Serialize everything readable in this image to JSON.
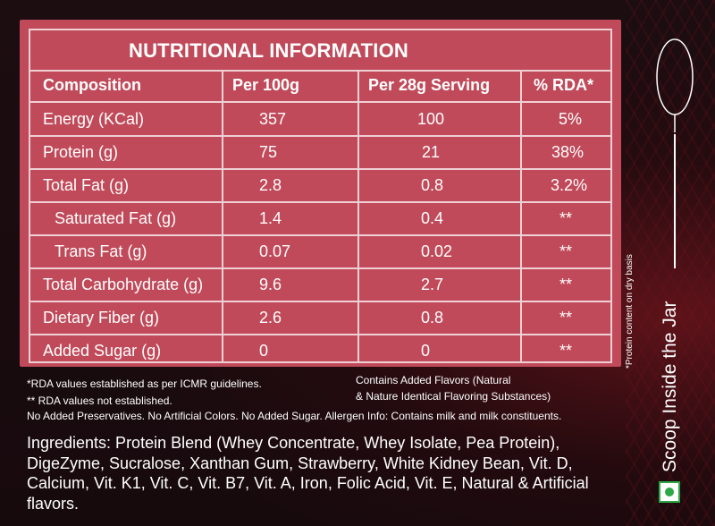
{
  "table": {
    "title": "NUTRITIONAL INFORMATION",
    "headers": [
      "Composition",
      "Per 100g",
      "Per 28g Serving",
      "% RDA*"
    ],
    "rows": [
      {
        "name": "Energy (KCal)",
        "per100": "357",
        "serving": "100",
        "rda": "5%"
      },
      {
        "name": "Protein (g)",
        "per100": "75",
        "serving": "21",
        "rda": "38%"
      },
      {
        "name": "Total Fat (g)",
        "per100": "2.8",
        "serving": "0.8",
        "rda": "3.2%"
      },
      {
        "name": "Saturated Fat (g)",
        "per100": "1.4",
        "serving": "0.4",
        "rda": "**"
      },
      {
        "name": "Trans Fat (g)",
        "per100": "0.07",
        "serving": "0.02",
        "rda": "**"
      },
      {
        "name": "Total Carbohydrate (g)",
        "per100": "9.6",
        "serving": "2.7",
        "rda": "**"
      },
      {
        "name": "Dietary Fiber (g)",
        "per100": "2.6",
        "serving": "0.8",
        "rda": "**"
      },
      {
        "name": "Added Sugar (g)",
        "per100": "0",
        "serving": "0",
        "rda": "**"
      }
    ]
  },
  "notes": {
    "rda_established": "*RDA values established as per ICMR guidelines.",
    "rda_not_established": "** RDA values not established.",
    "flavors_line1": "Contains Added Flavors (Natural",
    "flavors_line2": "& Nature Identical Flavoring Substances)",
    "allergen": "No Added Preservatives. No Artificial Colors. No Added Sugar. Allergen Info: Contains milk and milk constituents."
  },
  "ingredients": "Ingredients: Protein Blend (Whey Concentrate, Whey Isolate, Pea Protein), DigeZyme, Sucralose, Xanthan Gum, Strawberry, White Kidney Bean, Vit. D, Calcium, Vit. K1, Vit. C, Vit. B7, Vit. A, Iron, Folic Acid, Vit. E, Natural & Artificial flavors.",
  "side": {
    "protein_note": "*Protein content on dry basis",
    "scoop_text": "Scoop Inside the Jar"
  },
  "colors": {
    "panel": "#c04a5a",
    "border": "#efd0d4",
    "veg_green": "#2aa845"
  }
}
